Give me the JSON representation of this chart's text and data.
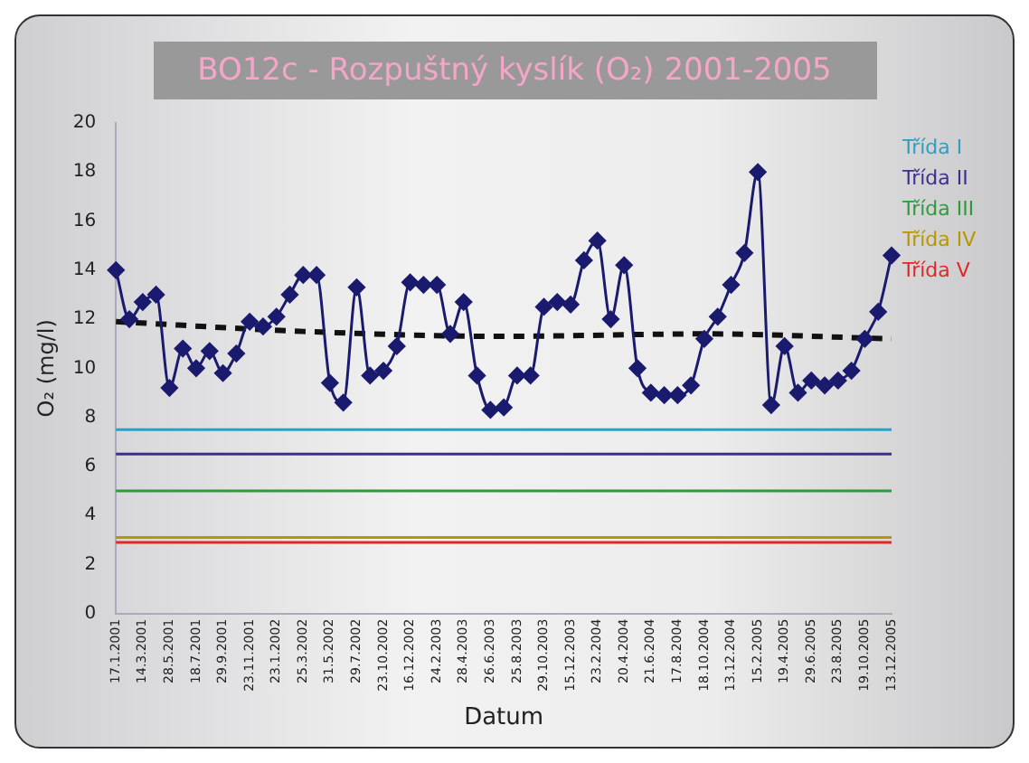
{
  "chart_data": {
    "type": "line",
    "title": "BO12c - Rozpuštný kyslík (O₂) 2001-2005",
    "xlabel": "Datum",
    "ylabel": "O₂ (mg/l)",
    "categories": [
      "17.1.2001",
      null,
      "14.3.2001",
      null,
      "28.5.2001",
      null,
      "18.7.2001",
      null,
      "29.9.2001",
      null,
      "23.11.2001",
      null,
      "23.1.2002",
      null,
      "25.3.2002",
      null,
      "31.5.2002",
      null,
      "29.7.2002",
      null,
      "23.10.2002",
      null,
      "16.12.2002",
      null,
      "24.2.2003",
      null,
      "28.4.2003",
      null,
      "26.6.2003",
      null,
      "25.8.2003",
      null,
      "29.10.2003",
      null,
      "15.12.2003",
      null,
      "23.2.2004",
      null,
      "20.4.2004",
      null,
      "21.6.2004",
      null,
      "17.8.2004",
      null,
      "18.10.2004",
      null,
      "13.12.2004",
      null,
      "15.2.2005",
      null,
      "19.4.2005",
      null,
      "29.6.2005",
      null,
      "23.8.2005",
      null,
      "19.10.2005",
      null,
      "13.12.2005"
    ],
    "series": [
      {
        "color": "#1a1a6e",
        "marker": "diamond",
        "line_style": "solid",
        "values": [
          14.0,
          12.0,
          12.7,
          13.0,
          9.2,
          10.8,
          10.0,
          10.7,
          9.8,
          10.6,
          11.9,
          11.7,
          12.1,
          13.0,
          13.8,
          13.8,
          9.4,
          8.6,
          13.3,
          9.7,
          9.9,
          10.9,
          13.5,
          13.4,
          13.4,
          11.4,
          12.7,
          9.7,
          8.3,
          8.4,
          9.7,
          9.7,
          12.5,
          12.7,
          12.6,
          14.4,
          15.2,
          12.0,
          14.2,
          10.0,
          9.0,
          8.9,
          8.9,
          9.3,
          11.2,
          12.1,
          13.4,
          14.7,
          18.0,
          8.5,
          10.9,
          9.0,
          9.5,
          9.3,
          9.5,
          9.9,
          11.2,
          12.3,
          14.6
        ]
      },
      {
        "color": "#111111",
        "marker": "none",
        "line_style": "dashed",
        "values": [
          11.9,
          null,
          null,
          null,
          null,
          null,
          null,
          null,
          null,
          null,
          null,
          null,
          null,
          null,
          11.5,
          null,
          null,
          null,
          null,
          null,
          null,
          null,
          null,
          null,
          null,
          null,
          null,
          null,
          null,
          11.3,
          null,
          null,
          null,
          null,
          null,
          null,
          null,
          null,
          null,
          null,
          null,
          null,
          null,
          null,
          11.4,
          null,
          null,
          null,
          null,
          null,
          null,
          null,
          null,
          null,
          null,
          null,
          null,
          null,
          11.2
        ]
      }
    ],
    "ylim": [
      0,
      20
    ],
    "yticks": [
      0,
      2,
      4,
      6,
      8,
      10,
      12,
      14,
      16,
      18,
      20
    ],
    "grid": false,
    "ref_lines": [
      {
        "axis": "y",
        "value": 7.5,
        "label": "Třída I",
        "color": "#2f9fc0"
      },
      {
        "axis": "y",
        "value": 6.5,
        "label": "Třída II",
        "color": "#3c2f8a"
      },
      {
        "axis": "y",
        "value": 5,
        "label": "Třída III",
        "color": "#2e9a3e"
      },
      {
        "axis": "y",
        "value": 3.1,
        "label": "Třída IV",
        "color": "#b89600"
      },
      {
        "axis": "y",
        "value": 2.9,
        "label": "Třída V",
        "color": "#e02828"
      }
    ]
  }
}
